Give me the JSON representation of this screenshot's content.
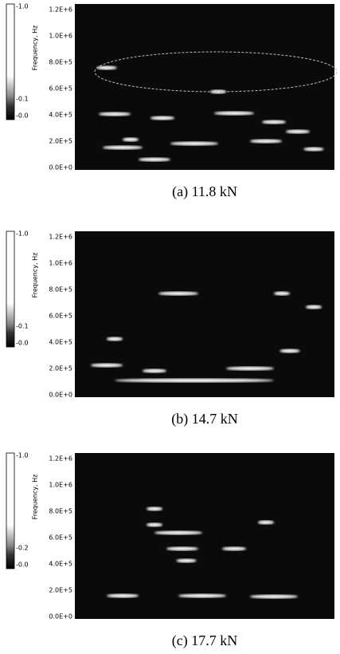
{
  "panels": [
    {
      "caption": "(a)  11.8  kN",
      "colorbar": [
        "-1.0",
        "-0.1",
        "-0.0"
      ],
      "y_label": "Frequency, Hz",
      "yticks": [
        "1.2E+6",
        "1.0E+6",
        "8.0E+5",
        "6.0E+5",
        "4.0E+5",
        "2.0E+5",
        "0.0E+0"
      ]
    },
    {
      "caption": "(b)  14.7  kN",
      "colorbar": [
        "-1.0",
        "-0.1",
        "-0.0"
      ],
      "y_label": "Frequency, Hz",
      "yticks": [
        "1.2E+6",
        "1.0E+6",
        "8.0E+5",
        "6.0E+5",
        "4.0E+5",
        "2.0E+5",
        "0.0E+0"
      ]
    },
    {
      "caption": "(c)  17.7  kN",
      "colorbar": [
        "-1.0",
        "-0.2",
        "-0.0"
      ],
      "y_label": "Frequency, Hz",
      "yticks": [
        "1.2E+6",
        "1.0E+6",
        "8.0E+5",
        "6.0E+5",
        "4.0E+5",
        "2.0E+5",
        "0.0E+0"
      ]
    }
  ]
}
